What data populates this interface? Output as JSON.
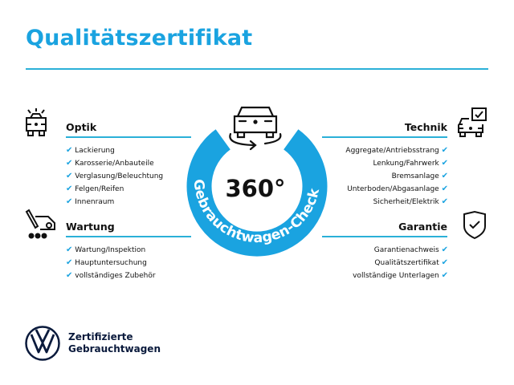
{
  "title": "Qualitätszertifikat",
  "center": {
    "number": "360°",
    "ring_text": "Gebrauchtwagen-Check",
    "ring_color": "#1aa3e0"
  },
  "sections": {
    "optik": {
      "heading": "Optik",
      "icon": "car-lights-icon",
      "items": [
        "Lackierung",
        "Karosserie/Anbauteile",
        "Verglasung/Beleuchtung",
        "Felgen/Reifen",
        "Innenraum"
      ]
    },
    "wartung": {
      "heading": "Wartung",
      "icon": "car-service-icon",
      "items": [
        "Wartung/Inspektion",
        "Hauptuntersuchung",
        "vollständiges Zubehör"
      ]
    },
    "technik": {
      "heading": "Technik",
      "icon": "car-checklist-icon",
      "items": [
        "Aggregate/Antriebsstrang",
        "Lenkung/Fahrwerk",
        "Bremsanlage",
        "Unterboden/Abgasanlage",
        "Sicherheit/Elektrik"
      ]
    },
    "garantie": {
      "heading": "Garantie",
      "icon": "shield-check-icon",
      "items": [
        "Garantienachweis",
        "Qualitätszertifikat",
        "vollständige Unterlagen"
      ]
    }
  },
  "check_mark": "✔",
  "footer": {
    "line1": "Zertifizierte",
    "line2": "Gebrauchtwagen",
    "logo": "VW"
  },
  "colors": {
    "accent": "#1aa3e0",
    "rule": "#2bb0d8",
    "logo": "#0a1a3c"
  }
}
